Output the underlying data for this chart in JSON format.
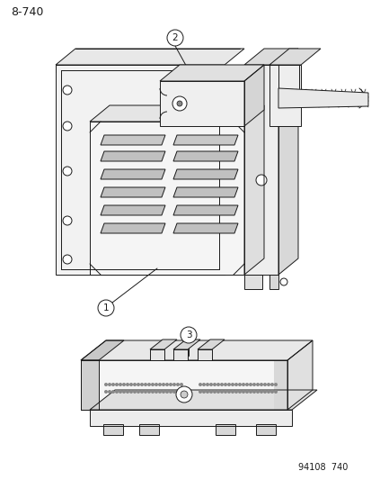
{
  "page_id": "8-740",
  "footer": "94108  740",
  "bg": "#ffffff",
  "lc": "#1a1a1a",
  "fig_width": 4.14,
  "fig_height": 5.33,
  "dpi": 100,
  "label1": "1",
  "label2": "2",
  "label3": "3"
}
